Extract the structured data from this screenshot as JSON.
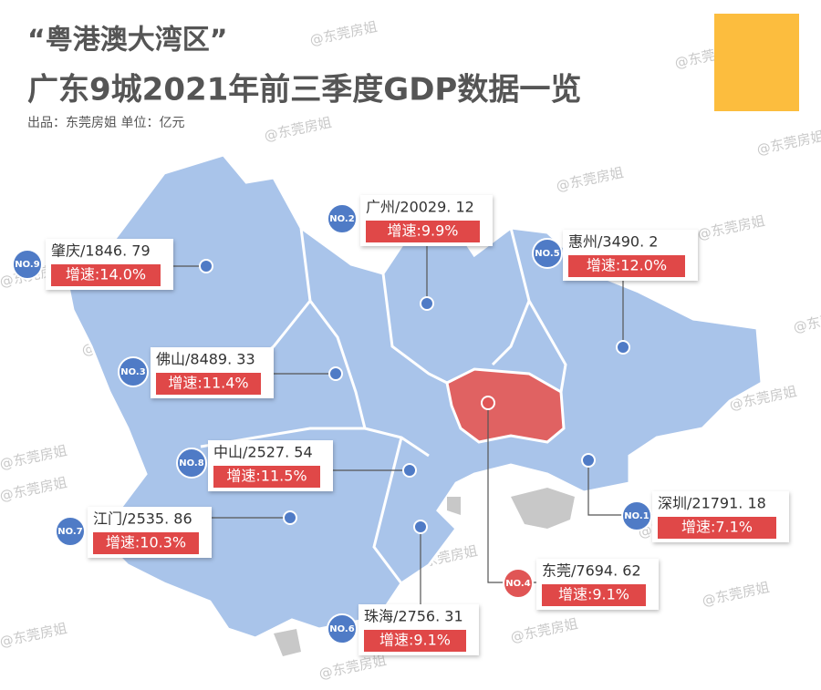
{
  "header": {
    "title_line1": "“粤港澳大湾区”",
    "title_line2": "广东9城2021年前三季度GDP数据一览",
    "subtitle": "出品：东莞房姐   单位：亿元"
  },
  "watermark": "@东莞房姐",
  "cities": [
    {
      "rank": "NO.2",
      "label": "广州/20029. 12",
      "growth": "增速:9.9%",
      "rank_color": "#4f7bc6"
    },
    {
      "rank": "NO.5",
      "label": "惠州/3490. 2",
      "growth": "增速:12.0%",
      "rank_color": "#4f7bc6"
    },
    {
      "rank": "NO.9",
      "label": "肇庆/1846. 79",
      "growth": "增速:14.0%",
      "rank_color": "#4f7bc6"
    },
    {
      "rank": "NO.3",
      "label": "佛山/8489. 33",
      "growth": "增速:11.4%",
      "rank_color": "#4f7bc6"
    },
    {
      "rank": "NO.8",
      "label": "中山/2527. 54",
      "growth": "增速:11.5%",
      "rank_color": "#4f7bc6"
    },
    {
      "rank": "NO.7",
      "label": "江门/2535. 86",
      "growth": "增速:10.3%",
      "rank_color": "#4f7bc6"
    },
    {
      "rank": "NO.1",
      "label": "深圳/21791. 18",
      "growth": "增速:7.1%",
      "rank_color": "#4f7bc6"
    },
    {
      "rank": "NO.4",
      "label": "东莞/7694. 62",
      "growth": "增速:9.1%",
      "rank_color": "#e05555"
    },
    {
      "rank": "NO.6",
      "label": "珠海/2756. 31",
      "growth": "增速:9.1%",
      "rank_color": "#4f7bc6"
    }
  ]
}
